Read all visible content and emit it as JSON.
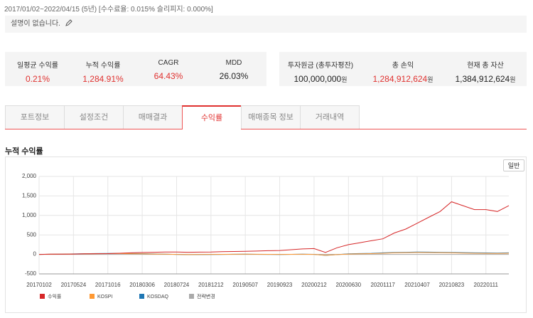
{
  "header": {
    "period": "2017/01/02~2022/04/15 (5년) [수수료율: 0.015% 슬리피지: 0.000%]",
    "description": "설명이 없습니다."
  },
  "stats_left": [
    {
      "label": "일평균 수익률",
      "value": "0.21%"
    },
    {
      "label": "누적 수익률",
      "value": "1,284.91%"
    },
    {
      "label": "CAGR",
      "value": "64.43%"
    },
    {
      "label": "MDD",
      "value": "26.03%"
    }
  ],
  "stats_right": [
    {
      "label": "투자원금 (총투자평잔)",
      "value": "100,000,000",
      "unit": "원"
    },
    {
      "label": "총 손익",
      "value": "1,284,912,624",
      "unit": "원"
    },
    {
      "label": "현재 총 자산",
      "value": "1,384,912,624",
      "unit": "원"
    }
  ],
  "tabs": [
    "포트정보",
    "설정조건",
    "매매결과",
    "수익률",
    "매매종목 정보",
    "거래내역"
  ],
  "active_tab": 3,
  "section_title": "누적 수익률",
  "button": "일반",
  "chart_data": {
    "type": "line",
    "categories": [
      "20170102",
      null,
      null,
      "20170524",
      null,
      null,
      "20171016",
      null,
      null,
      "20180306",
      null,
      null,
      "20180724",
      null,
      null,
      "20181212",
      null,
      null,
      "20190507",
      null,
      null,
      "20190923",
      null,
      null,
      "20200212",
      null,
      null,
      "20200630",
      null,
      null,
      "20201117",
      null,
      null,
      "20210407",
      null,
      null,
      "20210823",
      null,
      null,
      "20220111",
      null,
      null
    ],
    "series": [
      {
        "name": "수익률",
        "color": "#d62728",
        "values": [
          0,
          5,
          8,
          10,
          15,
          18,
          20,
          30,
          40,
          50,
          55,
          60,
          60,
          55,
          58,
          60,
          70,
          75,
          80,
          85,
          95,
          100,
          120,
          140,
          150,
          50,
          170,
          250,
          300,
          350,
          400,
          550,
          650,
          800,
          950,
          1100,
          1350,
          1250,
          1150,
          1150,
          1100,
          1250
        ]
      },
      {
        "name": "KOSPI",
        "color": "#ff9933",
        "values": [
          0,
          3,
          6,
          10,
          14,
          18,
          20,
          22,
          18,
          15,
          10,
          5,
          0,
          -5,
          -3,
          0,
          2,
          4,
          5,
          3,
          2,
          0,
          2,
          3,
          0,
          -20,
          -5,
          10,
          15,
          20,
          30,
          40,
          45,
          50,
          48,
          45,
          40,
          35,
          30,
          28,
          25,
          30
        ]
      },
      {
        "name": "KOSDAQ",
        "color": "#1f77b4",
        "values": [
          0,
          4,
          8,
          12,
          18,
          22,
          25,
          28,
          25,
          20,
          12,
          6,
          0,
          -8,
          -6,
          -2,
          0,
          3,
          5,
          2,
          0,
          -2,
          2,
          5,
          2,
          -25,
          -5,
          15,
          22,
          28,
          40,
          50,
          55,
          60,
          58,
          55,
          50,
          45,
          40,
          38,
          35,
          40
        ]
      },
      {
        "name": "전략변경",
        "color": "#aaaaaa",
        "values": [
          0,
          0,
          0,
          0,
          0,
          0,
          0,
          0,
          0,
          0,
          0,
          0,
          0,
          0,
          0,
          0,
          0,
          0,
          0,
          0,
          0,
          0,
          0,
          0,
          0,
          0,
          0,
          0,
          0,
          0,
          0,
          0,
          0,
          0,
          0,
          0,
          0,
          0,
          0,
          0,
          0,
          0
        ]
      }
    ],
    "ylim": [
      -500,
      2000
    ],
    "yticks": [
      -500,
      0,
      500,
      {
        "value": 1000,
        "label": "1,000"
      },
      {
        "value": 1500,
        "label": "1,500"
      },
      {
        "value": 2000,
        "label": "2,000"
      }
    ],
    "grid": true
  }
}
